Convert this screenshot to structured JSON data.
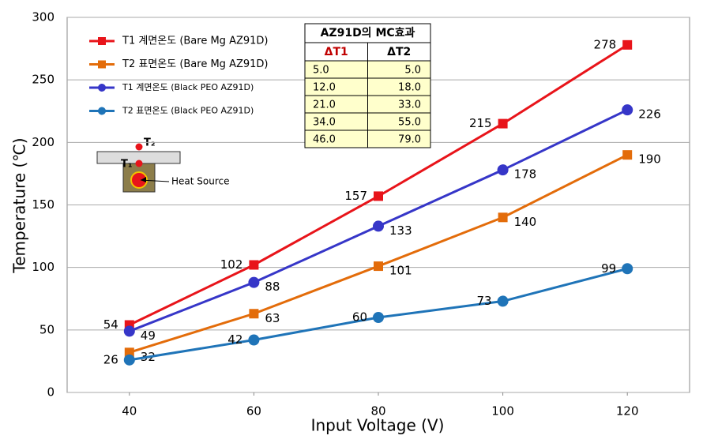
{
  "chart_data": {
    "type": "line",
    "x_label": "Input Voltage  (V)",
    "y_label": "Temperature (℃)",
    "x": [
      40,
      60,
      80,
      100,
      120
    ],
    "xlim": [
      30,
      130
    ],
    "xticks": [
      40,
      60,
      80,
      100,
      120
    ],
    "ylim": [
      0,
      300
    ],
    "yticks": [
      0,
      50,
      100,
      150,
      200,
      250,
      300
    ],
    "grid": true,
    "legend": "upper left",
    "series": [
      {
        "name": "T1 계면온도 (Bare Mg AZ91D)",
        "color": "#e8141a",
        "marker": "square",
        "values": [
          54,
          102,
          157,
          215,
          278
        ]
      },
      {
        "name": "T2 표면온도 (Bare Mg AZ91D)",
        "color": "#e36c0a",
        "marker": "square",
        "values": [
          32,
          63,
          101,
          140,
          190
        ]
      },
      {
        "name": "T1 계면온도  (Black PEO  AZ91D)",
        "color": "#3636c8",
        "marker": "circle",
        "values": [
          49,
          88,
          133,
          178,
          226
        ]
      },
      {
        "name": "T2 표면온도  (Black PEO  AZ91D)",
        "color": "#1f74b8",
        "marker": "circle",
        "values": [
          26,
          42,
          60,
          73,
          99
        ]
      }
    ],
    "inset_table": {
      "title": "AZ91D의 MC효과",
      "columns": [
        "ΔT1",
        "ΔT2"
      ],
      "rows": [
        [
          "5.0",
          "5.0"
        ],
        [
          "12.0",
          "18.0"
        ],
        [
          "21.0",
          "33.0"
        ],
        [
          "34.0",
          "55.0"
        ],
        [
          "46.0",
          "79.0"
        ]
      ]
    },
    "annotations": [
      "T₂",
      "T₁",
      "Heat Source"
    ]
  }
}
